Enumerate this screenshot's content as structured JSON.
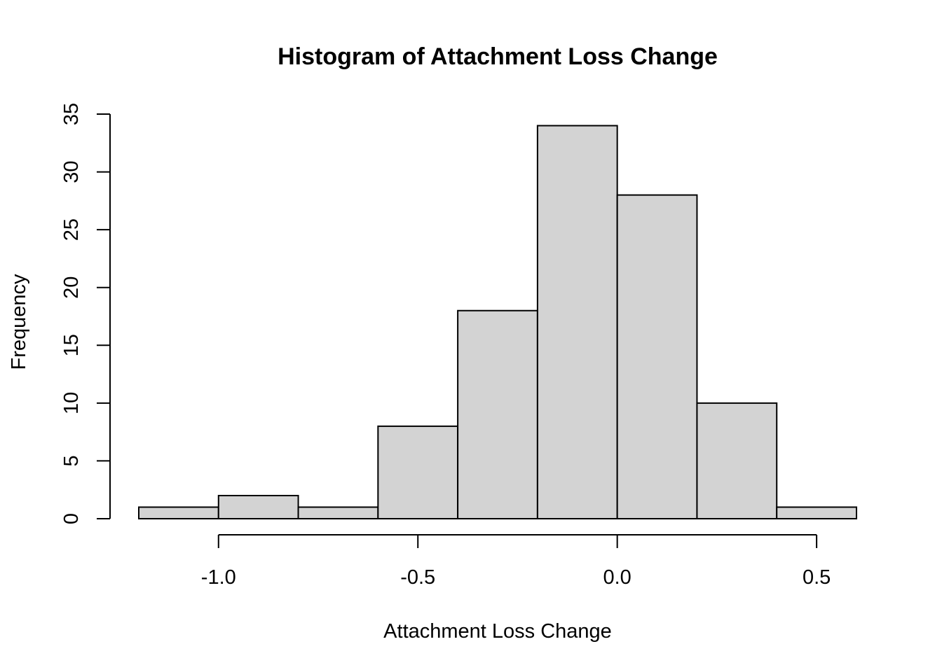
{
  "chart_data": {
    "type": "bar",
    "title": "Histogram of Attachment Loss Change",
    "xlabel": "Attachment Loss Change",
    "ylabel": "Frequency",
    "bins": [
      {
        "start": -1.2,
        "end": -1.0,
        "count": 1
      },
      {
        "start": -1.0,
        "end": -0.8,
        "count": 2
      },
      {
        "start": -0.8,
        "end": -0.6,
        "count": 1
      },
      {
        "start": -0.6,
        "end": -0.4,
        "count": 8
      },
      {
        "start": -0.4,
        "end": -0.2,
        "count": 18
      },
      {
        "start": -0.2,
        "end": 0.0,
        "count": 34
      },
      {
        "start": 0.0,
        "end": 0.2,
        "count": 28
      },
      {
        "start": 0.2,
        "end": 0.4,
        "count": 10
      },
      {
        "start": 0.4,
        "end": 0.6,
        "count": 1
      }
    ],
    "xlim": [
      -1.2,
      0.6
    ],
    "ylim": [
      0,
      35
    ],
    "x_ticks": [
      -1.0,
      -0.5,
      0.0,
      0.5
    ],
    "x_tick_labels": [
      "-1.0",
      "-0.5",
      "0.0",
      "0.5"
    ],
    "y_ticks": [
      0,
      5,
      10,
      15,
      20,
      25,
      30,
      35
    ],
    "y_tick_labels": [
      "0",
      "5",
      "10",
      "15",
      "20",
      "25",
      "30",
      "35"
    ],
    "grid": false,
    "bar_color": "#d3d3d3",
    "edge_color": "#000000"
  }
}
